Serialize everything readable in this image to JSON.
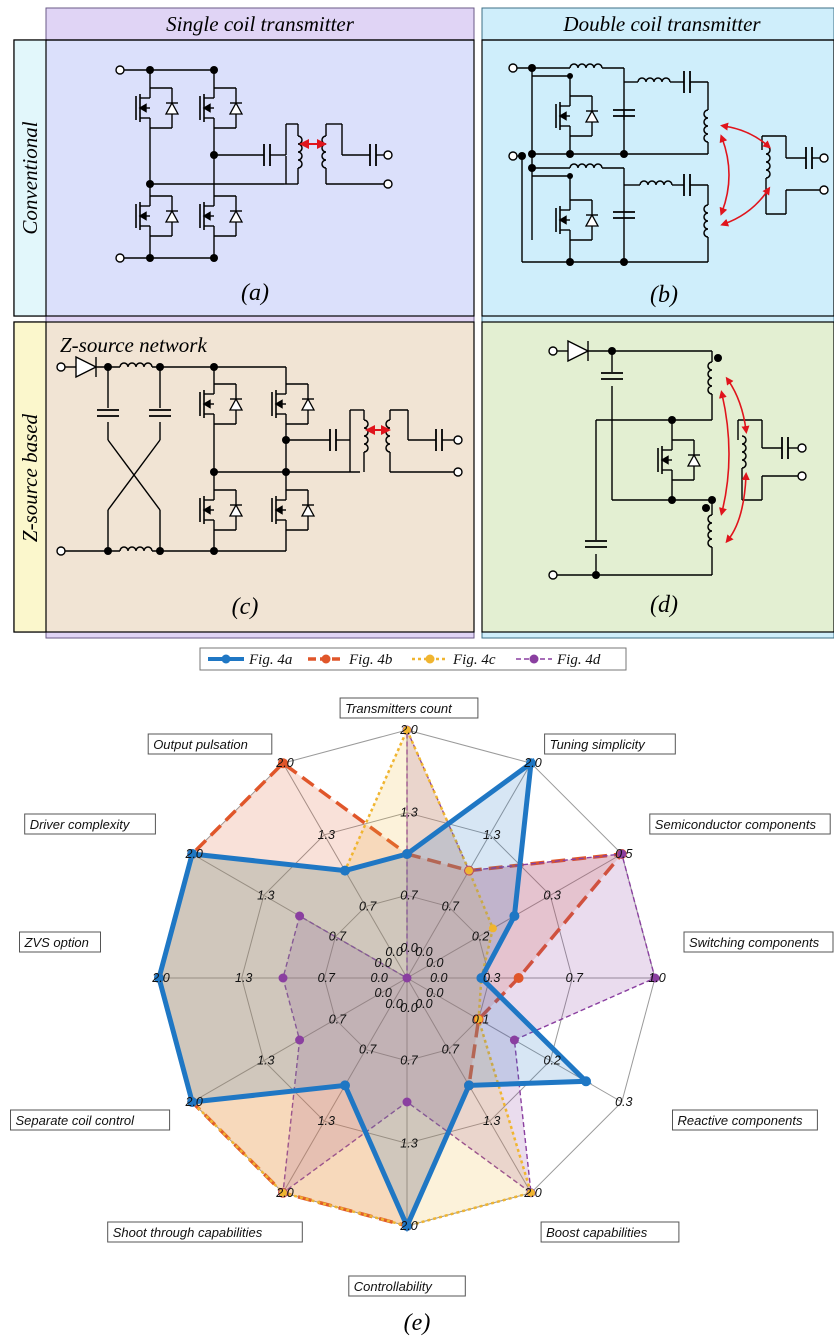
{
  "header": {
    "single_coil": "Single coil transmitter",
    "double_coil": "Double coil transmitter",
    "conventional": "Conventional",
    "z_source_based": "Z-source based",
    "z_source_network": "Z-source network"
  },
  "panels": {
    "a": "(a)",
    "b": "(b)",
    "c": "(c)",
    "d": "(d)",
    "e": "(e)"
  },
  "colors": {
    "single_bg": "#e0d4f5",
    "double_bg": "#cfeefb",
    "conv_bg": "#dbe0fb",
    "zsrc_left_bg": "#f1e4d4",
    "zsrc_right_bg": "#e3efd2",
    "conventional_label_bg": "#e2f7fb",
    "zsource_label_bg": "#fbf7cc",
    "coupling_arrow": "#e0141c"
  },
  "chart_data": {
    "type": "radar",
    "axes": [
      "Transmitters count",
      "Tuning simplicity",
      "Semiconductor components",
      "Switching components",
      "Reactive components",
      "Boost capabilities",
      "Controllability",
      "Shoot through capabilities",
      "Separate coil control",
      "ZVS option",
      "Driver complexity",
      "Output pulsation"
    ],
    "tick_labels": [
      [
        "0.0",
        "0.7",
        "1.3",
        "2.0"
      ],
      [
        "0.0",
        "0.7",
        "1.3",
        "2.0"
      ],
      [
        "0.0",
        "0.2",
        "0.3",
        "0.5"
      ],
      [
        "0.0",
        "0.3",
        "0.7",
        "1.0"
      ],
      [
        "0.0",
        "0.1",
        "0.2",
        "0.3"
      ],
      [
        "0.0",
        "0.7",
        "1.3",
        "2.0"
      ],
      [
        "0.0",
        "0.7",
        "1.3",
        "2.0"
      ],
      [
        "0.0",
        "0.7",
        "1.3",
        "2.0"
      ],
      [
        "0.0",
        "0.7",
        "1.3",
        "2.0"
      ],
      [
        "0.0",
        "0.7",
        "1.3",
        "2.0"
      ],
      [
        "0.0",
        "0.7",
        "1.3",
        "2.0"
      ],
      [
        "0.0",
        "0.7",
        "1.3",
        "2.0"
      ]
    ],
    "axis_max": [
      2.0,
      2.0,
      0.5,
      1.0,
      0.3,
      2.0,
      2.0,
      2.0,
      2.0,
      2.0,
      2.0,
      2.0
    ],
    "legend_position": "top",
    "series": [
      {
        "name": "Fig. 4a",
        "color": "#1f77c4",
        "values": [
          1.0,
          2.0,
          0.25,
          0.3,
          0.25,
          1.0,
          2.0,
          1.0,
          2.0,
          2.0,
          2.0,
          1.0
        ]
      },
      {
        "name": "Fig. 4b",
        "color": "#e0562a",
        "values": [
          1.0,
          1.0,
          0.5,
          0.45,
          0.1,
          1.0,
          2.0,
          2.0,
          2.0,
          2.0,
          2.0,
          2.0
        ]
      },
      {
        "name": "Fig. 4c",
        "color": "#f0b530",
        "values": [
          2.0,
          1.0,
          0.2,
          0.3,
          0.1,
          2.0,
          2.0,
          2.0,
          2.0,
          2.0,
          2.0,
          1.0
        ]
      },
      {
        "name": "Fig. 4d",
        "color": "#8a3fa0",
        "values": [
          2.0,
          1.0,
          0.5,
          1.0,
          0.15,
          2.0,
          1.0,
          2.0,
          1.0,
          1.0,
          1.0,
          0.0
        ]
      }
    ]
  }
}
